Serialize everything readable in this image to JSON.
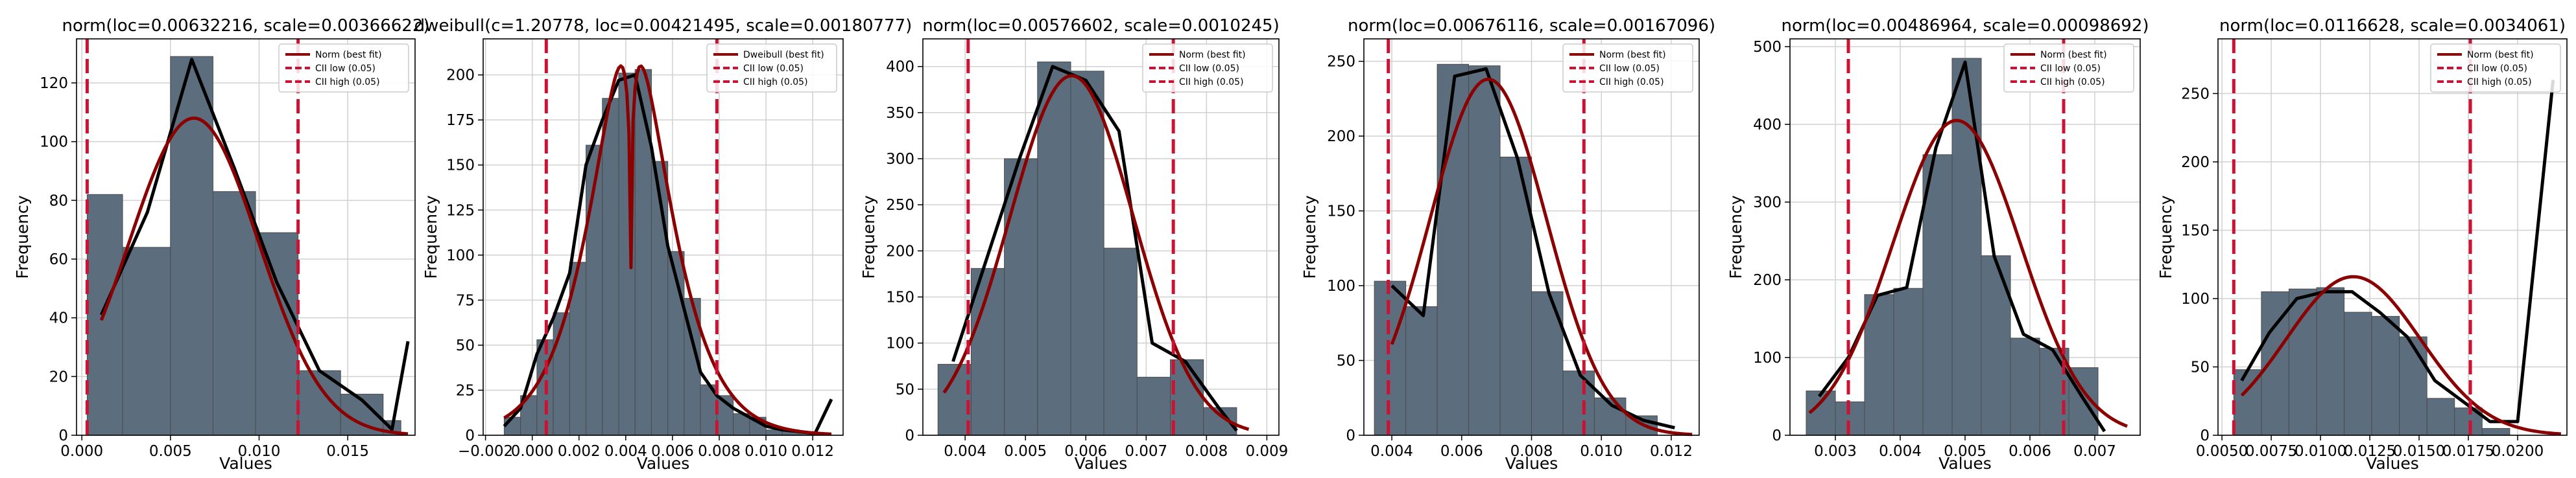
{
  "style": {
    "bar_fill": "#5c6e7d",
    "bar_edge": "#4a4a4a",
    "empirical_line": "#000000",
    "fit_line": "#8b0000",
    "ci_line": "#cc1133",
    "grid": "#d0d0d0"
  },
  "chart_data": [
    {
      "type": "bar",
      "title": "norm(loc=0.00632216, scale=0.00366622)",
      "xlabel": "Values",
      "ylabel": "Frequency",
      "grid": true,
      "legend_position": "top-right",
      "legend": [
        "Norm (best fit)",
        "CII low (0.05)",
        "CII high (0.05)"
      ],
      "xlim": [
        -0.0003,
        0.0188
      ],
      "ylim": [
        0,
        135
      ],
      "xticks": [
        0.0,
        0.005,
        0.01,
        0.015
      ],
      "xtick_labels": [
        "0.000",
        "0.005",
        "0.010",
        "0.015"
      ],
      "yticks": [
        0,
        20,
        40,
        60,
        80,
        100,
        120
      ],
      "ytick_labels": [
        "0",
        "20",
        "40",
        "60",
        "80",
        "100",
        "120"
      ],
      "bins": [
        0.0003,
        0.0023,
        0.005,
        0.0074,
        0.0098,
        0.0122,
        0.0146,
        0.017,
        0.018
      ],
      "counts": [
        82,
        64,
        129,
        83,
        69,
        22,
        14,
        5
      ],
      "empirical_curve": {
        "x": [
          0.0011,
          0.0037,
          0.0062,
          0.0086,
          0.011,
          0.0134,
          0.0158,
          0.0175,
          0.0184
        ],
        "y": [
          41,
          76,
          128,
          91,
          52,
          22,
          12,
          2,
          32
        ]
      },
      "fit_curve": {
        "loc": 0.00632216,
        "scale": 0.00366622,
        "peak": 108,
        "x_range": [
          0.0011,
          0.0184
        ]
      },
      "ci_low": 0.0003,
      "ci_high": 0.0122
    },
    {
      "type": "bar",
      "title": "dweibull(c=1.20778, loc=0.00421495, scale=0.00180777)",
      "xlabel": "Values",
      "ylabel": "Frequency",
      "grid": true,
      "legend_position": "top-right",
      "legend": [
        "Dweibull (best fit)",
        "CII low (0.05)",
        "CII high (0.05)"
      ],
      "xlim": [
        -0.0021,
        0.0133
      ],
      "ylim": [
        0,
        220
      ],
      "xticks": [
        -0.002,
        0.0,
        0.002,
        0.004,
        0.006,
        0.008,
        0.01,
        0.012
      ],
      "xtick_labels": [
        "−0.002",
        "0.000",
        "0.002",
        "0.004",
        "0.006",
        "0.008",
        "0.010",
        "0.012"
      ],
      "yticks": [
        0,
        25,
        50,
        75,
        100,
        125,
        150,
        175,
        200
      ],
      "ytick_labels": [
        "0",
        "25",
        "50",
        "75",
        "100",
        "125",
        "150",
        "175",
        "200"
      ],
      "bins": [
        -0.0012,
        -0.0005,
        0.0002,
        0.0009,
        0.0016,
        0.0023,
        0.003,
        0.0037,
        0.0044,
        0.0051,
        0.0058,
        0.0065,
        0.0072,
        0.0079,
        0.0086,
        0.0093,
        0.01,
        0.0107,
        0.0114,
        0.0121,
        0.0127
      ],
      "counts": [
        10,
        22,
        53,
        68,
        96,
        161,
        187,
        201,
        203,
        152,
        102,
        76,
        28,
        22,
        12,
        10,
        3,
        3,
        2,
        1
      ],
      "empirical_curve": {
        "x": [
          -0.0012,
          -0.0005,
          0.0002,
          0.0009,
          0.0016,
          0.0023,
          0.003,
          0.0037,
          0.0044,
          0.0051,
          0.0058,
          0.0065,
          0.0072,
          0.0079,
          0.0086,
          0.0093,
          0.01,
          0.0107,
          0.0114,
          0.0121,
          0.0128
        ],
        "y": [
          5,
          15,
          45,
          65,
          90,
          150,
          175,
          197,
          200,
          160,
          105,
          70,
          35,
          22,
          15,
          10,
          5,
          3,
          2,
          1,
          20
        ]
      },
      "fit_curve": {
        "c": 1.20778,
        "loc": 0.00421495,
        "scale": 0.00180777,
        "peak": 205,
        "dip": 93,
        "x_range": [
          -0.0012,
          0.0128
        ]
      },
      "ci_low": 0.0006,
      "ci_high": 0.0079
    },
    {
      "type": "bar",
      "title": "norm(loc=0.00576602, scale=0.0010245)",
      "xlabel": "Values",
      "ylabel": "Frequency",
      "grid": true,
      "legend_position": "top-right",
      "legend": [
        "Norm (best fit)",
        "CII low (0.05)",
        "CII high (0.05)"
      ],
      "xlim": [
        0.0033,
        0.0092
      ],
      "ylim": [
        0,
        430
      ],
      "xticks": [
        0.004,
        0.005,
        0.006,
        0.007,
        0.008,
        0.009
      ],
      "xtick_labels": [
        "0.004",
        "0.005",
        "0.006",
        "0.007",
        "0.008",
        "0.009"
      ],
      "yticks": [
        0,
        50,
        100,
        150,
        200,
        250,
        300,
        350,
        400
      ],
      "ytick_labels": [
        "0",
        "50",
        "100",
        "150",
        "200",
        "250",
        "300",
        "350",
        "400"
      ],
      "bins": [
        0.00355,
        0.0041,
        0.00465,
        0.0052,
        0.00575,
        0.0063,
        0.00685,
        0.0074,
        0.00795,
        0.0085,
        0.00905
      ],
      "counts": [
        77,
        181,
        300,
        405,
        395,
        203,
        63,
        82,
        30,
        0
      ],
      "empirical_curve": {
        "x": [
          0.0038,
          0.00435,
          0.0049,
          0.00545,
          0.006,
          0.00655,
          0.0071,
          0.00765,
          0.0082,
          0.0085
        ],
        "y": [
          80,
          190,
          300,
          400,
          385,
          330,
          100,
          80,
          30,
          5
        ]
      },
      "fit_curve": {
        "loc": 0.00576602,
        "scale": 0.0010245,
        "peak": 390,
        "x_range": [
          0.00365,
          0.0087
        ]
      },
      "ci_low": 0.00405,
      "ci_high": 0.00745
    },
    {
      "type": "bar",
      "title": "norm(loc=0.00676116, scale=0.00167096)",
      "xlabel": "Values",
      "ylabel": "Frequency",
      "grid": true,
      "legend_position": "top-right",
      "legend": [
        "Norm (best fit)",
        "CII low (0.05)",
        "CII high (0.05)"
      ],
      "xlim": [
        0.0032,
        0.0128
      ],
      "ylim": [
        0,
        265
      ],
      "xticks": [
        0.004,
        0.006,
        0.008,
        0.01,
        0.012
      ],
      "xtick_labels": [
        "0.004",
        "0.006",
        "0.008",
        "0.010",
        "0.012"
      ],
      "yticks": [
        0,
        50,
        100,
        150,
        200,
        250
      ],
      "ytick_labels": [
        "0",
        "50",
        "100",
        "150",
        "200",
        "250"
      ],
      "bins": [
        0.0035,
        0.0044,
        0.0053,
        0.0062,
        0.0071,
        0.008,
        0.0089,
        0.0098,
        0.0107,
        0.0116,
        0.0125
      ],
      "counts": [
        103,
        86,
        248,
        247,
        186,
        96,
        43,
        25,
        13,
        0
      ],
      "empirical_curve": {
        "x": [
          0.004,
          0.0049,
          0.0058,
          0.0067,
          0.0076,
          0.0085,
          0.0094,
          0.0103,
          0.0112,
          0.0121
        ],
        "y": [
          100,
          80,
          240,
          245,
          185,
          95,
          40,
          20,
          10,
          5
        ]
      },
      "fit_curve": {
        "loc": 0.00676116,
        "scale": 0.00167096,
        "peak": 238,
        "x_range": [
          0.004,
          0.0126
        ]
      },
      "ci_low": 0.0039,
      "ci_high": 0.0095
    },
    {
      "type": "bar",
      "title": "norm(loc=0.00486964, scale=0.00098692)",
      "xlabel": "Values",
      "ylabel": "Frequency",
      "grid": true,
      "legend_position": "top-right",
      "legend": [
        "Norm (best fit)",
        "CII low (0.05)",
        "CII high (0.05)"
      ],
      "xlim": [
        0.0023,
        0.0077
      ],
      "ylim": [
        0,
        510
      ],
      "xticks": [
        0.003,
        0.004,
        0.005,
        0.006,
        0.007
      ],
      "xtick_labels": [
        "0.003",
        "0.004",
        "0.005",
        "0.006",
        "0.007"
      ],
      "yticks": [
        0,
        100,
        200,
        300,
        400,
        500
      ],
      "ytick_labels": [
        "0",
        "100",
        "200",
        "300",
        "400",
        "500"
      ],
      "bins": [
        0.00255,
        0.003,
        0.00345,
        0.0039,
        0.00435,
        0.0048,
        0.00525,
        0.0057,
        0.00615,
        0.0066,
        0.00705,
        0.0075
      ],
      "counts": [
        57,
        43,
        181,
        189,
        361,
        485,
        231,
        125,
        112,
        87,
        0
      ],
      "empirical_curve": {
        "x": [
          0.00275,
          0.0032,
          0.00365,
          0.0041,
          0.00455,
          0.005,
          0.00545,
          0.0059,
          0.00635,
          0.0068,
          0.00715
        ],
        "y": [
          50,
          100,
          180,
          190,
          370,
          480,
          230,
          130,
          110,
          50,
          5
        ]
      },
      "fit_curve": {
        "loc": 0.00486964,
        "scale": 0.00098692,
        "peak": 405,
        "x_range": [
          0.0026,
          0.0075
        ]
      },
      "ci_low": 0.0032,
      "ci_high": 0.00652
    },
    {
      "type": "bar",
      "title": "norm(loc=0.0116628, scale=0.0034061)",
      "xlabel": "Values",
      "ylabel": "Frequency",
      "grid": true,
      "legend_position": "top-right",
      "legend": [
        "Norm (best fit)",
        "CII low (0.05)",
        "CII high (0.05)"
      ],
      "xlim": [
        0.0048,
        0.0225
      ],
      "ylim": [
        0,
        290
      ],
      "xticks": [
        0.005,
        0.0075,
        0.01,
        0.0125,
        0.015,
        0.0175,
        0.02
      ],
      "xtick_labels": [
        "0.0050",
        "0.0075",
        "0.0100",
        "0.0125",
        "0.0150",
        "0.0175",
        "0.0200"
      ],
      "yticks": [
        0,
        50,
        100,
        150,
        200,
        250
      ],
      "ytick_labels": [
        "0",
        "50",
        "100",
        "150",
        "200",
        "250"
      ],
      "bins": [
        0.0056,
        0.007,
        0.0084,
        0.0098,
        0.0112,
        0.0126,
        0.014,
        0.0154,
        0.0168,
        0.0182,
        0.0196
      ],
      "counts": [
        48,
        105,
        107,
        108,
        90,
        87,
        72,
        27,
        20,
        5
      ],
      "empirical_curve": {
        "x": [
          0.006,
          0.0074,
          0.0088,
          0.0102,
          0.0116,
          0.013,
          0.0144,
          0.0158,
          0.0172,
          0.0186,
          0.02,
          0.0218
        ],
        "y": [
          40,
          75,
          100,
          105,
          105,
          90,
          72,
          40,
          25,
          10,
          10,
          260
        ]
      },
      "fit_curve": {
        "loc": 0.0116628,
        "scale": 0.0034061,
        "peak": 116,
        "x_range": [
          0.006,
          0.0222
        ]
      },
      "ci_low": 0.0056,
      "ci_high": 0.0176
    }
  ]
}
